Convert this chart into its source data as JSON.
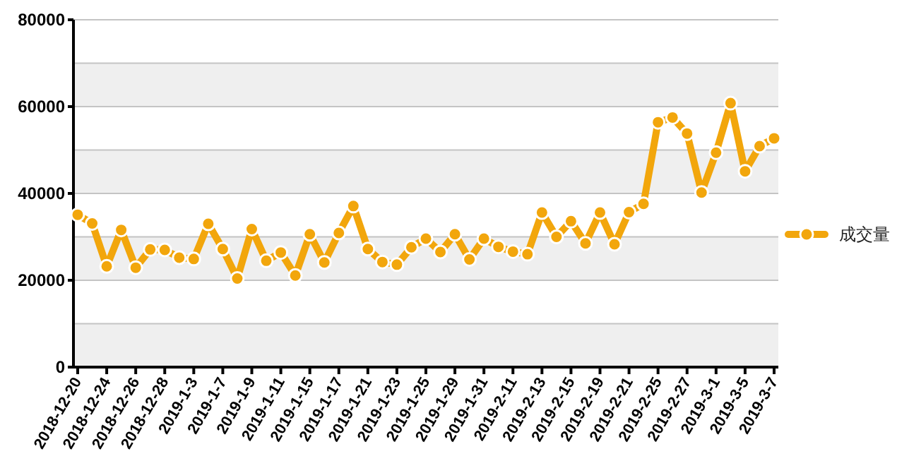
{
  "chart_data": {
    "type": "line",
    "categories": [
      "2018-12-20",
      null,
      "2018-12-24",
      null,
      "2018-12-26",
      null,
      "2018-12-28",
      null,
      "2019-1-3",
      null,
      "2019-1-7",
      null,
      "2019-1-9",
      null,
      "2019-1-11",
      null,
      "2019-1-15",
      null,
      "2019-1-17",
      null,
      "2019-1-21",
      null,
      "2019-1-23",
      null,
      "2019-1-25",
      null,
      "2019-1-29",
      null,
      "2019-1-31",
      null,
      "2019-2-11",
      null,
      "2019-2-13",
      null,
      "2019-2-15",
      null,
      "2019-2-19",
      null,
      "2019-2-21",
      null,
      "2019-2-25",
      null,
      "2019-2-27",
      null,
      "2019-3-1",
      null,
      "2019-3-5",
      null,
      "2019-3-7"
    ],
    "series": [
      {
        "name": "成交量",
        "color": "#f2a60c",
        "values": [
          35100,
          33100,
          23200,
          31600,
          22900,
          27100,
          27000,
          25200,
          24900,
          33000,
          27200,
          20400,
          31800,
          24500,
          26400,
          21100,
          30600,
          24100,
          30900,
          37100,
          27200,
          24200,
          23600,
          27600,
          29600,
          26500,
          30600,
          24800,
          29600,
          27700,
          26600,
          26000,
          35600,
          30000,
          33600,
          28500,
          35600,
          28300,
          35700,
          37600,
          56400,
          57500,
          53800,
          40200,
          49400,
          60800,
          45100,
          50900,
          52700
        ]
      }
    ],
    "ylim": [
      0,
      80000
    ],
    "yticks": [
      0,
      {
        "value": 10000,
        "label": null
      },
      20000,
      {
        "value": 30000,
        "label": null
      },
      40000,
      {
        "value": 50000,
        "label": null
      },
      60000,
      {
        "value": 70000,
        "label": null
      },
      80000
    ],
    "grid": "y",
    "legend": "right",
    "marker": "circle",
    "line_style": "solid"
  }
}
